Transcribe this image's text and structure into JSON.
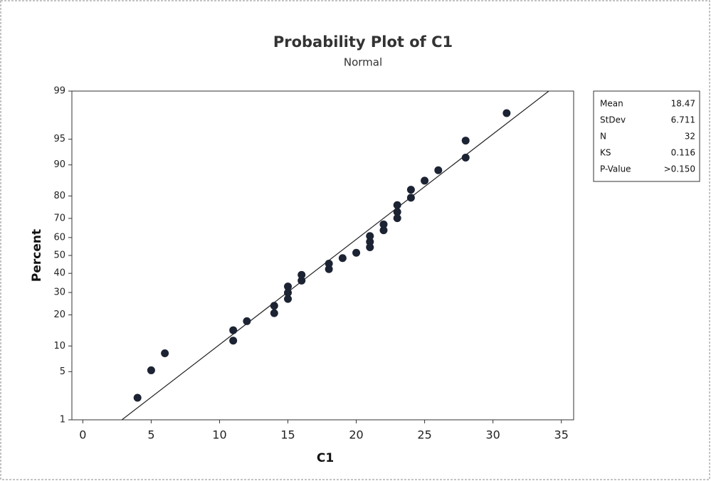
{
  "chart_data": {
    "type": "probability",
    "title": "Probability Plot of C1",
    "subtitle": "Normal",
    "x_label": "C1",
    "y_label": "Percent",
    "yscale": "normal",
    "color": "#1c2333",
    "line_color": "#222222",
    "x": [
      4,
      5,
      6,
      11,
      11,
      12,
      14,
      14,
      15,
      15,
      15,
      16,
      16,
      18,
      18,
      19,
      20,
      21,
      21,
      21,
      22,
      22,
      23,
      23,
      23,
      24,
      24,
      25,
      26,
      28,
      28,
      31
    ],
    "values": [
      2.2,
      5.2,
      8.3,
      11.4,
      14.5,
      17.6,
      20.7,
      23.8,
      26.9,
      29.9,
      33.0,
      36.1,
      39.2,
      42.3,
      45.4,
      48.5,
      51.5,
      54.6,
      57.7,
      60.8,
      63.9,
      67.0,
      70.1,
      73.1,
      76.2,
      79.3,
      82.4,
      85.5,
      88.6,
      91.7,
      94.8,
      97.8
    ],
    "xlim": [
      -0.8,
      35.9
    ],
    "xticks": [
      0,
      5,
      10,
      15,
      20,
      25,
      30,
      35
    ],
    "ylim": [
      1,
      99
    ],
    "yticks": [
      1,
      5,
      10,
      20,
      30,
      40,
      50,
      60,
      70,
      80,
      90,
      95,
      99
    ],
    "stats": [
      {
        "label": "Mean",
        "value": 18.47
      },
      {
        "label": "StDev",
        "value": 6.711
      },
      {
        "label": "N",
        "value": 32
      },
      {
        "label": "KS",
        "value": 0.116
      },
      {
        "label": "P-Value",
        "value": ">0.150"
      }
    ]
  }
}
